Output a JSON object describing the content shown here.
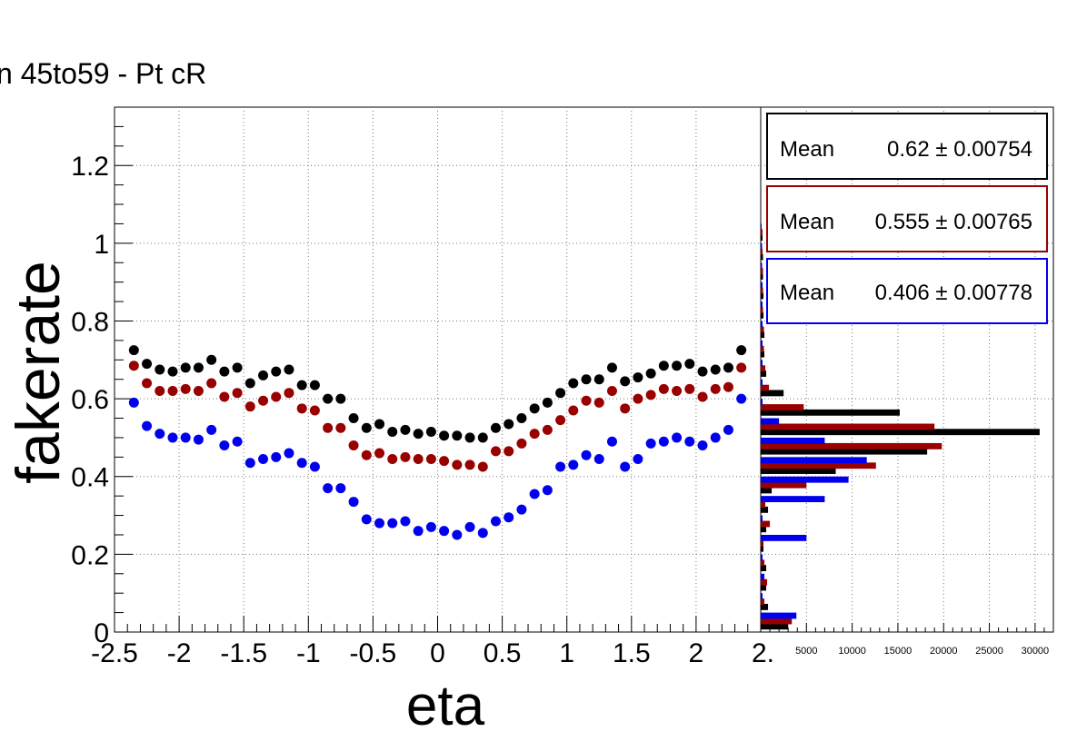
{
  "canvas_title": "n 45to59 - Pt cR",
  "chart_data": [
    {
      "type": "scatter",
      "xlabel": "eta",
      "ylabel": "fakerate",
      "xlim": [
        -2.5,
        2.5
      ],
      "ylim": [
        0,
        1.35
      ],
      "grid": true,
      "x_ticks": [
        "-2.5",
        "-2",
        "-1.5",
        "-1",
        "-0.5",
        "0",
        "0.5",
        "1",
        "1.5",
        "2",
        "2."
      ],
      "y_ticks": [
        "0",
        "0.2",
        "0.4",
        "0.6",
        "0.8",
        "1",
        "1.2"
      ],
      "x": [
        -2.35,
        -2.25,
        -2.15,
        -2.05,
        -1.95,
        -1.85,
        -1.75,
        -1.65,
        -1.55,
        -1.45,
        -1.35,
        -1.25,
        -1.15,
        -1.05,
        -0.95,
        -0.85,
        -0.75,
        -0.65,
        -0.55,
        -0.45,
        -0.35,
        -0.25,
        -0.15,
        -0.05,
        0.05,
        0.15,
        0.25,
        0.35,
        0.45,
        0.55,
        0.65,
        0.75,
        0.85,
        0.95,
        1.05,
        1.15,
        1.25,
        1.35,
        1.45,
        1.55,
        1.65,
        1.75,
        1.85,
        1.95,
        2.05,
        2.15,
        2.25,
        2.35
      ],
      "series": [
        {
          "color": "#000000",
          "values": [
            0.725,
            0.69,
            0.675,
            0.67,
            0.68,
            0.68,
            0.7,
            0.67,
            0.68,
            0.64,
            0.66,
            0.67,
            0.675,
            0.635,
            0.635,
            0.6,
            0.6,
            0.55,
            0.525,
            0.535,
            0.515,
            0.52,
            0.51,
            0.515,
            0.505,
            0.505,
            0.5,
            0.5,
            0.525,
            0.535,
            0.55,
            0.575,
            0.59,
            0.615,
            0.64,
            0.65,
            0.65,
            0.68,
            0.645,
            0.655,
            0.665,
            0.685,
            0.685,
            0.69,
            0.67,
            0.675,
            0.68,
            0.725
          ]
        },
        {
          "color": "#990000",
          "values": [
            0.685,
            0.64,
            0.62,
            0.62,
            0.625,
            0.62,
            0.64,
            0.605,
            0.615,
            0.58,
            0.595,
            0.605,
            0.615,
            0.575,
            0.57,
            0.525,
            0.525,
            0.48,
            0.455,
            0.46,
            0.445,
            0.45,
            0.445,
            0.445,
            0.44,
            0.43,
            0.43,
            0.425,
            0.465,
            0.465,
            0.485,
            0.51,
            0.52,
            0.545,
            0.57,
            0.595,
            0.59,
            0.62,
            0.575,
            0.6,
            0.61,
            0.625,
            0.62,
            0.625,
            0.605,
            0.625,
            0.63,
            0.68
          ]
        },
        {
          "color": "#0000ee",
          "values": [
            0.59,
            0.53,
            0.51,
            0.5,
            0.5,
            0.495,
            0.52,
            0.48,
            0.49,
            0.435,
            0.445,
            0.45,
            0.46,
            0.435,
            0.425,
            0.37,
            0.37,
            0.335,
            0.29,
            0.28,
            0.28,
            0.285,
            0.26,
            0.27,
            0.26,
            0.25,
            0.27,
            0.255,
            0.285,
            0.295,
            0.315,
            0.355,
            0.365,
            0.425,
            0.43,
            0.455,
            0.445,
            0.49,
            0.425,
            0.445,
            0.485,
            0.49,
            0.5,
            0.49,
            0.48,
            0.5,
            0.52,
            0.6
          ]
        }
      ]
    },
    {
      "type": "bar",
      "orientation": "horizontal",
      "ylim": [
        0,
        1.35
      ],
      "xlim": [
        0,
        32000
      ],
      "x_ticks": [
        "5000",
        "10000",
        "15000",
        "20000",
        "25000",
        "30000"
      ],
      "bin_centers": [
        0.025,
        0.075,
        0.125,
        0.175,
        0.225,
        0.275,
        0.325,
        0.375,
        0.425,
        0.475,
        0.525,
        0.575,
        0.625,
        0.675,
        0.725,
        0.775,
        0.825,
        0.875,
        0.925,
        0.975,
        1.025
      ],
      "series": [
        {
          "color": "#000000",
          "values": [
            3000,
            800,
            600,
            600,
            300,
            600,
            800,
            1200,
            8200,
            18200,
            30500,
            15200,
            2500,
            600,
            400,
            400,
            300,
            300,
            250,
            250,
            200
          ]
        },
        {
          "color": "#990000",
          "values": [
            3400,
            400,
            700,
            400,
            300,
            1000,
            500,
            5000,
            12600,
            19800,
            19000,
            4700,
            900,
            500,
            350,
            350,
            250,
            250,
            250,
            200,
            200
          ]
        },
        {
          "color": "#0000ee",
          "values": [
            3900,
            200,
            400,
            200,
            5000,
            200,
            7000,
            9600,
            11600,
            7000,
            2000,
            200,
            200,
            200,
            200,
            200,
            200,
            200,
            150,
            150,
            100
          ]
        }
      ]
    }
  ],
  "stats": [
    {
      "label": "Mean",
      "value": "0.62 ± 0.00754",
      "color": "#000000"
    },
    {
      "label": "Mean",
      "value": "0.555 ± 0.00765",
      "color": "#990000"
    },
    {
      "label": "Mean",
      "value": "0.406 ± 0.00778",
      "color": "#0000ee"
    }
  ]
}
